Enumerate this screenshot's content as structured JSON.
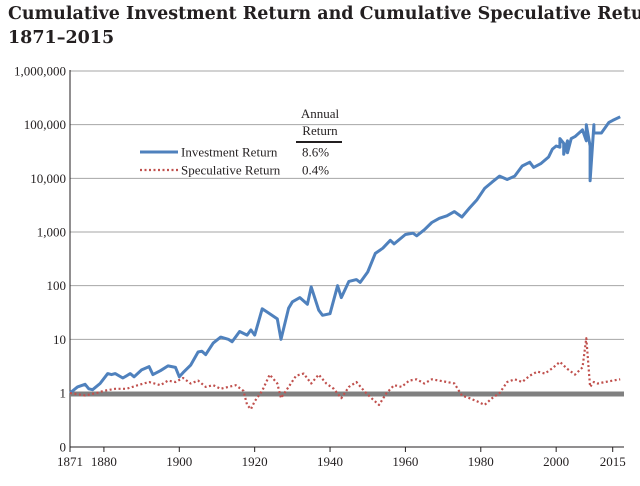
{
  "chart_data": {
    "type": "line",
    "title_line1": "Cumulative Investment Return and Cumulative Speculative Return,",
    "title_line2": "1871–2015",
    "y_scale": "log",
    "ylim": [
      0,
      1000000
    ],
    "y_ticks": [
      {
        "value": 1000000,
        "label": "1,000,000"
      },
      {
        "value": 100000,
        "label": "100,000"
      },
      {
        "value": 10000,
        "label": "10,000"
      },
      {
        "value": 1000,
        "label": "1,000"
      },
      {
        "value": 100,
        "label": "100"
      },
      {
        "value": 10,
        "label": "10"
      },
      {
        "value": 1,
        "label": "1"
      },
      {
        "value": 0,
        "label": "0"
      }
    ],
    "xlim": [
      1871,
      2018
    ],
    "x_ticks": [
      {
        "value": 1871,
        "label": "1871"
      },
      {
        "value": 1880,
        "label": "1880"
      },
      {
        "value": 1900,
        "label": "1900"
      },
      {
        "value": 1920,
        "label": "1920"
      },
      {
        "value": 1940,
        "label": "1940"
      },
      {
        "value": 1960,
        "label": "1960"
      },
      {
        "value": 1980,
        "label": "1980"
      },
      {
        "value": 2000,
        "label": "2000"
      },
      {
        "value": 2015,
        "label": "2015"
      }
    ],
    "grid": true,
    "legend_header": [
      "Annual",
      "Return"
    ],
    "legend_position": "top-left",
    "reference_line_value": 1,
    "series": [
      {
        "name": "Investment Return",
        "annual_return": "8.6%",
        "color": "#4f81bd",
        "style": "solid",
        "x": [
          1871,
          1873,
          1875,
          1876,
          1877,
          1879,
          1881,
          1882,
          1883,
          1885,
          1887,
          1888,
          1890,
          1892,
          1893,
          1895,
          1897,
          1899,
          1900,
          1901,
          1903,
          1905,
          1906,
          1907,
          1909,
          1911,
          1913,
          1914,
          1916,
          1918,
          1919,
          1920,
          1922,
          1924,
          1926,
          1927,
          1929,
          1930,
          1932,
          1934,
          1935,
          1937,
          1938,
          1940,
          1942,
          1943,
          1945,
          1947,
          1948,
          1950,
          1952,
          1954,
          1956,
          1957,
          1960,
          1962,
          1963,
          1965,
          1967,
          1969,
          1971,
          1973,
          1975,
          1977,
          1979,
          1981,
          1983,
          1985,
          1987,
          1989,
          1991,
          1993,
          1994,
          1996,
          1998,
          1999,
          2000,
          2001,
          2002,
          2003,
          2005,
          2007,
          2008,
          2009,
          2010,
          2012,
          2014,
          2015,
          2017
        ],
        "y": [
          1.0,
          1.3,
          1.45,
          1.2,
          1.15,
          1.5,
          2.3,
          2.2,
          2.3,
          1.9,
          2.3,
          2.0,
          2.7,
          3.1,
          2.2,
          2.6,
          3.2,
          3.0,
          2.0,
          2.4,
          3.3,
          5.8,
          6.0,
          5.2,
          8.5,
          11,
          10,
          9,
          14,
          12,
          15,
          12,
          37,
          30,
          24,
          10,
          38,
          50,
          60,
          45,
          95,
          35,
          28,
          30,
          100,
          60,
          120,
          130,
          115,
          180,
          400,
          500,
          700,
          600,
          900,
          950,
          850,
          1100,
          1500,
          1800,
          2000,
          2400,
          1900,
          2800,
          4000,
          6500,
          8500,
          11000,
          9500,
          11000,
          17000,
          20000,
          16000,
          19000,
          25000,
          35000,
          40000,
          38000,
          45000,
          50000,
          60000,
          80000,
          50000,
          40000,
          100000,
          70000,
          110000,
          120000,
          140000
        ],
        "x_annotated": [
          2001,
          2002,
          2003,
          2004,
          2008,
          2009,
          2010
        ],
        "y_annotated": [
          55000,
          28000,
          30000,
          55000,
          100000,
          9000,
          70000
        ]
      },
      {
        "name": "Speculative Return",
        "annual_return": "0.4%",
        "color": "#c0504d",
        "style": "dotted",
        "x": [
          1871,
          1875,
          1878,
          1880,
          1883,
          1886,
          1889,
          1892,
          1895,
          1897,
          1899,
          1901,
          1903,
          1905,
          1907,
          1909,
          1911,
          1913,
          1915,
          1917,
          1918,
          1919,
          1920,
          1922,
          1924,
          1926,
          1927,
          1929,
          1931,
          1933,
          1935,
          1937,
          1939,
          1941,
          1943,
          1945,
          1947,
          1949,
          1951,
          1953,
          1955,
          1957,
          1959,
          1961,
          1963,
          1965,
          1967,
          1969,
          1971,
          1973,
          1975,
          1977,
          1979,
          1981,
          1983,
          1985,
          1987,
          1989,
          1991,
          1993,
          1995,
          1997,
          1999,
          2001,
          2003,
          2005,
          2007,
          2008,
          2009,
          2010,
          2011,
          2013,
          2015,
          2017
        ],
        "y": [
          1.0,
          0.9,
          1.0,
          1.1,
          1.2,
          1.2,
          1.4,
          1.6,
          1.4,
          1.7,
          1.6,
          1.9,
          1.5,
          1.7,
          1.3,
          1.4,
          1.2,
          1.3,
          1.4,
          1.1,
          0.6,
          0.5,
          0.7,
          1.1,
          2.2,
          1.5,
          0.8,
          1.3,
          2.1,
          2.3,
          1.5,
          2.2,
          1.5,
          1.2,
          0.8,
          1.3,
          1.6,
          1.1,
          0.8,
          0.6,
          1.0,
          1.4,
          1.3,
          1.7,
          1.8,
          1.5,
          1.8,
          1.7,
          1.6,
          1.5,
          0.9,
          0.8,
          0.7,
          0.6,
          0.8,
          1.0,
          1.6,
          1.8,
          1.6,
          2.1,
          2.5,
          2.3,
          2.9,
          3.8,
          2.8,
          2.2,
          3.0,
          10.5,
          1.3,
          1.6,
          1.5,
          1.6,
          1.7,
          1.8
        ]
      }
    ]
  }
}
